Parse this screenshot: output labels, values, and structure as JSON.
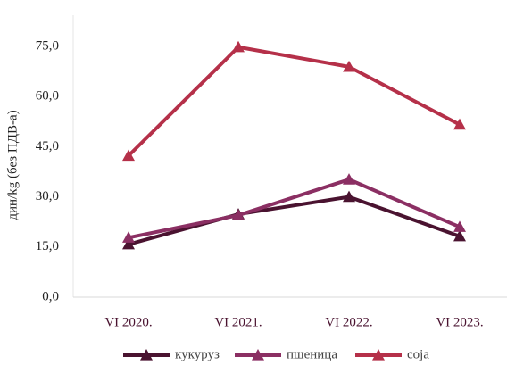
{
  "chart_data": {
    "type": "line",
    "categories": [
      "VI 2020.",
      "VI 2021.",
      "VI 2022.",
      "VI 2023."
    ],
    "series": [
      {
        "name": "кукуруз",
        "values": [
          15.8,
          24.8,
          30.0,
          18.2
        ],
        "color": "#4a1330"
      },
      {
        "name": "пшеница",
        "values": [
          17.8,
          24.5,
          35.2,
          21.0
        ],
        "color": "#8b2f63"
      },
      {
        "name": "соја",
        "values": [
          42.3,
          74.8,
          68.9,
          51.6
        ],
        "color": "#b53049"
      }
    ],
    "ylabel": "дин/kg (без ПДВ-а)",
    "xlabel": "",
    "ylim": [
      0,
      75
    ],
    "yticks": [
      "0,0",
      "15,0",
      "30,0",
      "45,0",
      "60,0",
      "75,0"
    ],
    "grid": false,
    "legend_position": "bottom",
    "marker": "triangle"
  }
}
